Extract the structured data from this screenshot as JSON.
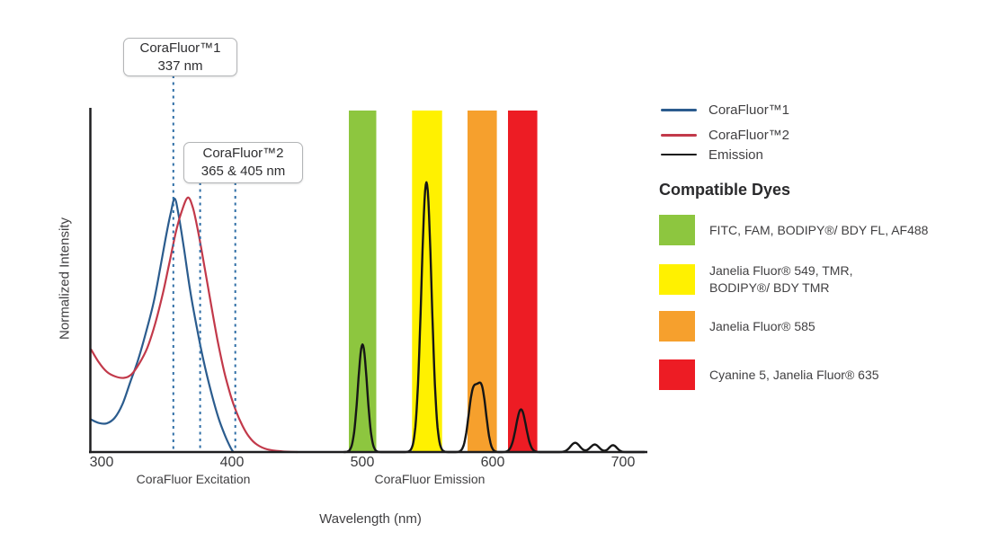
{
  "chart_data": {
    "type": "line",
    "title": "",
    "xlabel": "Wavelength (nm)",
    "ylabel": "Normalized Intensity",
    "x_tick_labels": [
      "300",
      "400",
      "500",
      "600",
      "700"
    ],
    "x_ticks_nm": [
      300,
      400,
      500,
      600,
      700
    ],
    "xlim_nm": [
      291,
      718
    ],
    "ylim": [
      0,
      1
    ],
    "grid": false,
    "excitation_section_label": "CoraFluor Excitation",
    "emission_section_label": "CoraFluor Emission",
    "marker_line_color": "#2f6ea6",
    "series": [
      {
        "name": "CoraFluor™1",
        "kind": "excitation",
        "color": "#2b5c8e",
        "points": [
          [
            292,
            0.095
          ],
          [
            298,
            0.085
          ],
          [
            304,
            0.084
          ],
          [
            310,
            0.1
          ],
          [
            316,
            0.14
          ],
          [
            322,
            0.205
          ],
          [
            328,
            0.27
          ],
          [
            334,
            0.35
          ],
          [
            340,
            0.44
          ],
          [
            345,
            0.54
          ],
          [
            350,
            0.645
          ],
          [
            353,
            0.7
          ],
          [
            356,
            0.742
          ],
          [
            359,
            0.695
          ],
          [
            363,
            0.6
          ],
          [
            368,
            0.47
          ],
          [
            373,
            0.365
          ],
          [
            378,
            0.27
          ],
          [
            384,
            0.175
          ],
          [
            390,
            0.095
          ],
          [
            395,
            0.045
          ],
          [
            399,
            0.012
          ],
          [
            401,
            0.0
          ]
        ]
      },
      {
        "name": "CoraFluor™2",
        "kind": "excitation",
        "color": "#c2394a",
        "points": [
          [
            292,
            0.3
          ],
          [
            298,
            0.262
          ],
          [
            304,
            0.235
          ],
          [
            310,
            0.222
          ],
          [
            317,
            0.217
          ],
          [
            323,
            0.228
          ],
          [
            329,
            0.26
          ],
          [
            335,
            0.305
          ],
          [
            341,
            0.375
          ],
          [
            347,
            0.465
          ],
          [
            352,
            0.555
          ],
          [
            357,
            0.645
          ],
          [
            361,
            0.7
          ],
          [
            366,
            0.745
          ],
          [
            370,
            0.715
          ],
          [
            374,
            0.645
          ],
          [
            379,
            0.54
          ],
          [
            384,
            0.43
          ],
          [
            389,
            0.325
          ],
          [
            394,
            0.235
          ],
          [
            399,
            0.165
          ],
          [
            403,
            0.12
          ],
          [
            408,
            0.077
          ],
          [
            413,
            0.045
          ],
          [
            419,
            0.022
          ],
          [
            427,
            0.008
          ],
          [
            438,
            0.002
          ],
          [
            450,
            0.0
          ]
        ]
      },
      {
        "name": "Emission",
        "kind": "emission",
        "color": "#161616",
        "model": "gaussian_sum",
        "range_nm": [
          486,
          716
        ],
        "peaks": [
          {
            "center": 500,
            "height": 0.315,
            "sigma": 3.5
          },
          {
            "center": 549,
            "height": 0.79,
            "sigma": 3.9
          },
          {
            "center": 584.5,
            "height": 0.165,
            "sigma": 3.4
          },
          {
            "center": 591.5,
            "height": 0.175,
            "sigma": 3.4
          },
          {
            "center": 621.5,
            "height": 0.125,
            "sigma": 3.8
          },
          {
            "center": 663,
            "height": 0.027,
            "sigma": 3.6
          },
          {
            "center": 678,
            "height": 0.022,
            "sigma": 3.4
          },
          {
            "center": 692,
            "height": 0.02,
            "sigma": 3.0
          }
        ]
      }
    ],
    "bands": [
      {
        "nm": [
          489.5,
          510.5
        ],
        "color": "#8dc63f",
        "dyes": "FITC, FAM, BODIPY®/ BDY FL, AF488"
      },
      {
        "nm": [
          538.0,
          561.0
        ],
        "color": "#fff100",
        "dyes": "Janelia Fluor® 549, TMR, BODIPY®/ BDY TMR"
      },
      {
        "nm": [
          580.5,
          603.0
        ],
        "color": "#f6a02d",
        "dyes": "Janelia Fluor® 585"
      },
      {
        "nm": [
          611.5,
          634.0
        ],
        "color": "#ed1c24",
        "dyes": "Cyanine 5, Janelia Fluor® 635"
      }
    ],
    "annotations": [
      {
        "label_line1": "CoraFluor™1",
        "label_line2": "337 nm",
        "lines_nm": [
          355
        ]
      },
      {
        "label_line1": "CoraFluor™2",
        "label_line2": "365 & 405 nm",
        "lines_nm": [
          375.5,
          402.5
        ]
      }
    ]
  },
  "legend": {
    "series": [
      {
        "label": "CoraFluor™1",
        "color": "#2b5c8e"
      },
      {
        "label": "CoraFluor™2",
        "color": "#c2394a"
      },
      {
        "label": "Emission",
        "color": "#161616"
      }
    ],
    "heading": "Compatible Dyes",
    "dyes": [
      {
        "color": "#8dc63f",
        "line1": "FITC, FAM, BODIPY®/ BDY FL, AF488",
        "line2": ""
      },
      {
        "color": "#fff100",
        "line1": "Janelia Fluor® 549, TMR,",
        "line2": "BODIPY®/ BDY TMR"
      },
      {
        "color": "#f6a02d",
        "line1": "Janelia Fluor® 585",
        "line2": ""
      },
      {
        "color": "#ed1c24",
        "line1": "Cyanine 5, Janelia Fluor® 635",
        "line2": ""
      }
    ]
  }
}
